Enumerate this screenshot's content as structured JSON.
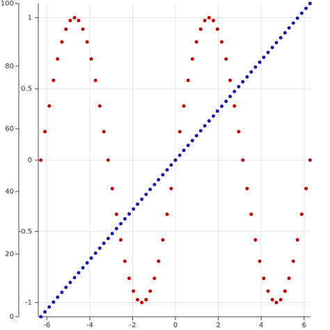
{
  "chart_data": {
    "type": "scatter",
    "x": [
      -6.28,
      -6.09,
      -5.89,
      -5.69,
      -5.5,
      -5.3,
      -5.11,
      -4.91,
      -4.71,
      -4.52,
      -4.32,
      -4.12,
      -3.93,
      -3.73,
      -3.53,
      -3.34,
      -3.14,
      -2.95,
      -2.75,
      -2.55,
      -2.36,
      -2.16,
      -1.96,
      -1.77,
      -1.57,
      -1.37,
      -1.18,
      -0.98,
      -0.79,
      -0.59,
      -0.39,
      -0.2,
      0,
      0.2,
      0.39,
      0.59,
      0.79,
      0.98,
      1.18,
      1.37,
      1.57,
      1.77,
      1.96,
      2.16,
      2.36,
      2.55,
      2.75,
      2.95,
      3.14,
      3.34,
      3.53,
      3.73,
      3.93,
      4.12,
      4.32,
      4.52,
      4.71,
      4.91,
      5.11,
      5.3,
      5.5,
      5.69,
      5.89,
      6.09,
      6.28
    ],
    "series": [
      {
        "color": "#c00000",
        "values": [
          0,
          0.2,
          0.38,
          0.56,
          0.71,
          0.83,
          0.92,
          0.98,
          1,
          0.98,
          0.92,
          0.83,
          0.71,
          0.56,
          0.38,
          0.2,
          0,
          -0.2,
          -0.38,
          -0.56,
          -0.71,
          -0.83,
          -0.92,
          -0.98,
          -1,
          -0.98,
          -0.92,
          -0.83,
          -0.71,
          -0.56,
          -0.38,
          -0.2,
          0,
          0.2,
          0.38,
          0.56,
          0.71,
          0.83,
          0.92,
          0.98,
          1,
          0.98,
          0.92,
          0.83,
          0.71,
          0.56,
          0.38,
          0.2,
          0,
          -0.2,
          -0.38,
          -0.56,
          -0.71,
          -0.83,
          -0.92,
          -0.98,
          -1,
          -0.98,
          -0.92,
          -0.83,
          -0.71,
          -0.56,
          -0.38,
          -0.2,
          0
        ]
      },
      {
        "color": "#1a1aa6",
        "axis": "y2",
        "values": [
          0,
          1.56,
          3.13,
          4.69,
          6.25,
          7.81,
          9.38,
          10.94,
          12.5,
          14.06,
          15.63,
          17.19,
          18.75,
          20.31,
          21.88,
          23.44,
          25,
          26.56,
          28.13,
          29.69,
          31.25,
          32.81,
          34.38,
          35.94,
          37.5,
          39.06,
          40.63,
          42.19,
          43.75,
          45.31,
          46.88,
          48.44,
          50,
          51.56,
          53.13,
          54.69,
          56.25,
          57.81,
          59.38,
          60.94,
          62.5,
          64.06,
          65.63,
          67.19,
          68.75,
          70.31,
          71.88,
          73.44,
          75,
          76.56,
          78.13,
          79.69,
          81.25,
          82.81,
          84.38,
          85.94,
          87.5,
          89.06,
          90.63,
          92.19,
          93.75,
          95.31,
          96.88,
          98.44,
          100
        ]
      }
    ],
    "xlim": [
      -6.4,
      6.3
    ],
    "xticks": [
      -6,
      -4,
      -2,
      0,
      2,
      4,
      6
    ],
    "ylim": [
      -1.1,
      1.1
    ],
    "yticks": [
      -1,
      -0.5,
      0,
      0.5,
      1
    ],
    "y2lim": [
      0,
      100
    ],
    "y2ticks": [
      0,
      20,
      40,
      60,
      80,
      100
    ],
    "grid": true
  }
}
